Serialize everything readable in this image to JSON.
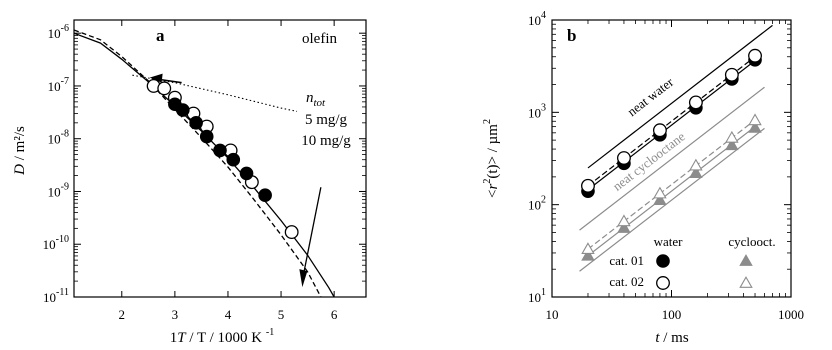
{
  "chart_data": [
    {
      "panel": "a",
      "type": "scatter",
      "title": "olefin",
      "xlabel": "1/T / 1000 K",
      "xlabel_sup": "-1",
      "ylabel": "D / m²/s",
      "xlim": [
        1.1,
        6.6
      ],
      "ylim_log10": [
        -11,
        -5.75
      ],
      "y_log": true,
      "x_ticks": [
        2,
        3,
        4,
        5,
        6
      ],
      "y_ticks": [
        {
          "mant": "10",
          "exp": "-6"
        },
        {
          "mant": "10",
          "exp": "-7"
        },
        {
          "mant": "10",
          "exp": "-8"
        },
        {
          "mant": "10",
          "exp": "-9"
        },
        {
          "mant": "10",
          "exp": "-10"
        },
        {
          "mant": "10",
          "exp": "-11"
        }
      ],
      "annotations": {
        "ntot_main": "n",
        "ntot_sub": "tot",
        "value1": "5 mg/g",
        "value2": "10 mg/g"
      },
      "series": [
        {
          "marker": "open-circle",
          "points": [
            [
              2.6,
              1e-07
            ],
            [
              2.8,
              9e-08
            ],
            [
              3.0,
              6e-08
            ],
            [
              3.35,
              3e-08
            ],
            [
              3.6,
              1.7e-08
            ],
            [
              4.05,
              6e-09
            ],
            [
              4.45,
              1.5e-09
            ],
            [
              5.2,
              1.7e-10
            ]
          ]
        },
        {
          "marker": "filled-circle",
          "points": [
            [
              3.0,
              4.5e-08
            ],
            [
              3.15,
              3.5e-08
            ],
            [
              3.4,
              2e-08
            ],
            [
              3.6,
              1.1e-08
            ],
            [
              3.85,
              6e-09
            ],
            [
              4.1,
              4e-09
            ],
            [
              4.35,
              2.2e-09
            ],
            [
              4.7,
              8.5e-10
            ]
          ]
        }
      ],
      "curves": [
        {
          "style": "solid",
          "points": [
            [
              1.1,
              1e-06
            ],
            [
              1.6,
              6.5e-07
            ],
            [
              2.0,
              3.2e-07
            ],
            [
              2.5,
              1.2e-07
            ],
            [
              3.0,
              4.2e-08
            ],
            [
              3.5,
              1.4e-08
            ],
            [
              4.0,
              4.3e-09
            ],
            [
              4.5,
              1.15e-09
            ],
            [
              5.0,
              2.8e-10
            ],
            [
              5.5,
              6.2e-11
            ],
            [
              5.9,
              1.5e-11
            ],
            [
              6.0,
              1e-11
            ]
          ]
        },
        {
          "style": "dashed",
          "points": [
            [
              1.1,
              1.15e-06
            ],
            [
              1.6,
              7.5e-07
            ],
            [
              2.0,
              3.6e-07
            ],
            [
              2.5,
              1.25e-07
            ],
            [
              3.0,
              3.6e-08
            ],
            [
              3.5,
              1.05e-08
            ],
            [
              4.0,
              2.9e-09
            ],
            [
              4.5,
              6.8e-10
            ],
            [
              5.0,
              1.5e-10
            ],
            [
              5.5,
              3e-11
            ],
            [
              5.75,
              1e-11
            ]
          ]
        },
        {
          "style": "dotted",
          "points": [
            [
              2.2,
              1.6e-07
            ],
            [
              3.0,
              1.15e-07
            ],
            [
              4.0,
              6.8e-08
            ],
            [
              5.0,
              3.8e-08
            ],
            [
              5.3,
              3.3e-08
            ]
          ]
        }
      ]
    },
    {
      "panel": "b",
      "type": "scatter",
      "xlabel": "t / ms",
      "ylabel": "<r²(t)> / µm²",
      "ylabel_parts": {
        "open": "<",
        "r": "r",
        "sup": "2",
        "arg": "(t)",
        "close": "> / µm",
        "sup2": "2"
      },
      "x_log": true,
      "y_log": true,
      "xlim": [
        10,
        1000
      ],
      "ylim": [
        10,
        10000
      ],
      "x_ticks": [
        "10",
        "100",
        "1000"
      ],
      "y_ticks": [
        {
          "mant": "10",
          "exp": "1"
        },
        {
          "mant": "10",
          "exp": "2"
        },
        {
          "mant": "10",
          "exp": "3"
        },
        {
          "mant": "10",
          "exp": "4"
        }
      ],
      "line_labels": {
        "neat_water": "neat water",
        "neat_cyclooctane": "neat cyclooctane"
      },
      "legend": {
        "header_water": "water",
        "header_cyclooct": "cyclooct.",
        "row1": "cat. 01",
        "row2": "cat. 02"
      },
      "colors": {
        "black": "#000000",
        "gray": "#8c8c8c"
      },
      "series": [
        {
          "name": "cat. 01 water",
          "marker": "filled-circle",
          "color": "#000000",
          "x": [
            20,
            40,
            80,
            160,
            320,
            500
          ],
          "y": [
            140,
            280,
            570,
            1120,
            2300,
            3700
          ]
        },
        {
          "name": "cat. 02 water",
          "marker": "open-circle",
          "color": "#000000",
          "x": [
            20,
            40,
            80,
            160,
            320,
            500
          ],
          "y": [
            160,
            320,
            640,
            1280,
            2550,
            4100
          ]
        },
        {
          "name": "cat. 01 cyclooct.",
          "marker": "filled-triangle",
          "color": "#8c8c8c",
          "x": [
            20,
            40,
            80,
            160,
            320,
            500
          ],
          "y": [
            28,
            56,
            112,
            220,
            440,
            680
          ]
        },
        {
          "name": "cat. 02 cyclooct.",
          "marker": "open-triangle",
          "color": "#8c8c8c",
          "x": [
            20,
            40,
            80,
            160,
            320,
            500
          ],
          "y": [
            33,
            66,
            132,
            265,
            530,
            820
          ]
        }
      ],
      "reference_lines": [
        {
          "label": "neat water",
          "color": "#000000",
          "style": "solid",
          "x": [
            20,
            700
          ],
          "y": [
            250,
            8750
          ]
        },
        {
          "label": "neat cyclooctane",
          "color": "#8c8c8c",
          "style": "solid",
          "x": [
            17,
            600
          ],
          "y": [
            53,
            1870
          ]
        },
        {
          "color": "#8c8c8c",
          "style": "solid",
          "x": [
            17,
            600
          ],
          "y": [
            19,
            670
          ]
        },
        {
          "color": "#000000",
          "style": "solid",
          "x": [
            20,
            500
          ],
          "y": [
            145,
            3630
          ]
        },
        {
          "color": "#000000",
          "style": "dashed",
          "x": [
            20,
            500
          ],
          "y": [
            160,
            4000
          ]
        },
        {
          "color": "#8c8c8c",
          "style": "solid",
          "x": [
            20,
            500
          ],
          "y": [
            28,
            700
          ]
        },
        {
          "color": "#8c8c8c",
          "style": "dashed",
          "x": [
            20,
            500
          ],
          "y": [
            33,
            825
          ]
        }
      ]
    }
  ]
}
